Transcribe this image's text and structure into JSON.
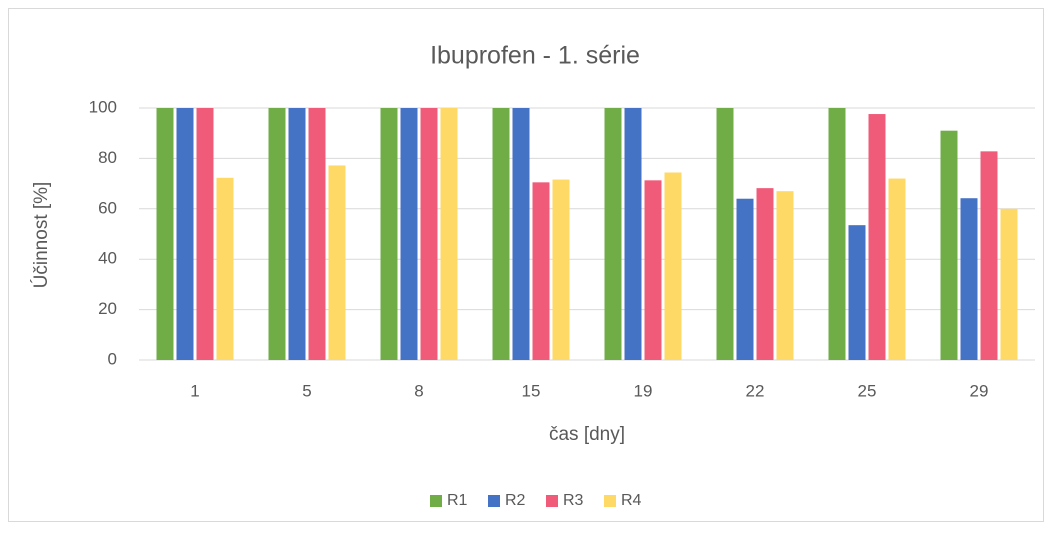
{
  "chart_data": {
    "type": "bar",
    "title": "Ibuprofen - 1. série",
    "x_label": "čas [dny]",
    "y_label": "Účinnost [%]",
    "categories": [
      "1",
      "5",
      "8",
      "15",
      "19",
      "22",
      "25",
      "29"
    ],
    "series": [
      {
        "name": "R1",
        "color": "#70ad47",
        "values": [
          100,
          100,
          100,
          100,
          100,
          100,
          100,
          91
        ]
      },
      {
        "name": "R2",
        "color": "#4472c4",
        "values": [
          100,
          100,
          100,
          100,
          100,
          64,
          53.5,
          64.2
        ]
      },
      {
        "name": "R3",
        "color": "#f05b7a",
        "values": [
          100,
          100,
          100,
          70.5,
          71.3,
          68.2,
          97.6,
          82.8
        ]
      },
      {
        "name": "R4",
        "color": "#ffd966",
        "values": [
          72.3,
          77.2,
          100,
          71.6,
          74.4,
          67,
          72,
          60
        ]
      }
    ],
    "ylim": [
      0,
      100
    ],
    "yticks": [
      0,
      20,
      40,
      60,
      80,
      100
    ],
    "grid": true,
    "legend": "bottom"
  }
}
